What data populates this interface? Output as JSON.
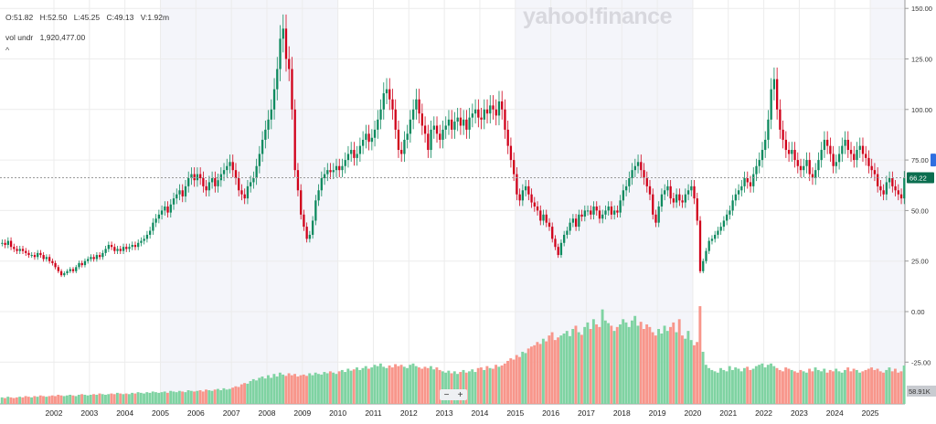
{
  "legend": {
    "open": "O:51.82",
    "high": "H:52.50",
    "low": "L:45.25",
    "close": "C:49.13",
    "volume": "V:1.92m",
    "vol_label": "vol undr",
    "vol_value": "1,920,477.00",
    "collapse": "^"
  },
  "logo": "yahoo!finance",
  "zoom_controls": {
    "minus": "−",
    "plus": "+"
  },
  "colors": {
    "up": "#0e8a5f",
    "down": "#d0021b",
    "vol_up": "#7fd3a2",
    "vol_down": "#f8968b",
    "price_tag": "#0b6e4f",
    "vol_tag": "#c8cbd0",
    "shade": "#f4f5fa"
  },
  "chart_data": {
    "type": "candlestick",
    "interval": "monthly",
    "start": "2000-07",
    "y_ticks": [
      "150.00",
      "125.00",
      "100.00",
      "75.00",
      "50.00",
      "25.00",
      "0.00",
      "-25.00"
    ],
    "y_tick_values": [
      150,
      125,
      100,
      75,
      50,
      25,
      0,
      -25
    ],
    "x_ticks": [
      "2002",
      "2003",
      "2004",
      "2005",
      "2006",
      "2007",
      "2008",
      "2009",
      "2010",
      "2011",
      "2012",
      "2013",
      "2014",
      "2015",
      "2016",
      "2017",
      "2018",
      "2019",
      "2020",
      "2021",
      "2022",
      "2023",
      "2024",
      "2025"
    ],
    "current_price": "66.22",
    "current_price_value": 66.22,
    "last_volume": "58.91K",
    "shaded_periods": [
      [
        2005,
        2010
      ],
      [
        2015,
        2020
      ],
      [
        2025,
        2026
      ]
    ],
    "close": [
      34,
      33,
      35,
      32,
      31,
      30,
      31,
      30,
      29,
      28,
      28,
      27,
      29,
      28,
      26,
      27,
      25,
      24,
      22,
      20,
      18,
      19,
      20,
      21,
      20,
      22,
      24,
      23,
      25,
      26,
      27,
      26,
      28,
      27,
      29,
      31,
      33,
      32,
      30,
      31,
      30,
      32,
      31,
      32,
      33,
      32,
      34,
      35,
      36,
      38,
      40,
      44,
      46,
      48,
      50,
      52,
      49,
      53,
      56,
      58,
      60,
      57,
      62,
      66,
      68,
      65,
      68,
      66,
      62,
      60,
      64,
      66,
      62,
      65,
      68,
      70,
      72,
      74,
      70,
      66,
      60,
      58,
      56,
      62,
      64,
      66,
      72,
      78,
      85,
      90,
      95,
      100,
      110,
      120,
      135,
      140,
      125,
      120,
      100,
      70,
      60,
      48,
      42,
      36,
      38,
      45,
      55,
      60,
      66,
      68,
      70,
      69,
      70,
      72,
      70,
      72,
      75,
      78,
      80,
      76,
      78,
      82,
      85,
      88,
      84,
      86,
      90,
      95,
      100,
      108,
      110,
      105,
      100,
      90,
      80,
      78,
      85,
      88,
      95,
      100,
      105,
      98,
      92,
      88,
      80,
      90,
      92,
      88,
      85,
      90,
      92,
      95,
      90,
      94,
      96,
      92,
      95,
      90,
      96,
      98,
      100,
      96,
      95,
      100,
      98,
      102,
      100,
      97,
      104,
      100,
      90,
      82,
      75,
      68,
      58,
      55,
      60,
      62,
      58,
      54,
      52,
      50,
      45,
      48,
      44,
      42,
      36,
      32,
      28,
      34,
      38,
      40,
      44,
      46,
      42,
      48,
      47,
      50,
      50,
      48,
      52,
      50,
      46,
      48,
      50,
      52,
      48,
      50,
      49,
      55,
      60,
      62,
      66,
      70,
      72,
      74,
      70,
      66,
      62,
      58,
      48,
      44,
      52,
      58,
      60,
      62,
      56,
      54,
      58,
      55,
      54,
      58,
      60,
      62,
      56,
      45,
      20,
      25,
      30,
      35,
      36,
      38,
      40,
      42,
      45,
      48,
      50,
      55,
      58,
      60,
      62,
      66,
      64,
      62,
      68,
      72,
      75,
      80,
      85,
      95,
      110,
      115,
      100,
      90,
      85,
      80,
      78,
      80,
      75,
      72,
      70,
      72,
      75,
      68,
      66,
      70,
      75,
      80,
      85,
      82,
      78,
      72,
      74,
      78,
      82,
      85,
      80,
      78,
      75,
      80,
      82,
      78,
      76,
      72,
      70,
      68,
      62,
      60,
      58,
      64,
      66,
      62,
      60,
      58,
      56,
      66.22
    ],
    "volume_k": [
      10,
      9,
      11,
      10,
      9,
      10,
      11,
      10,
      12,
      11,
      10,
      12,
      11,
      13,
      12,
      11,
      12,
      13,
      12,
      14,
      13,
      12,
      13,
      14,
      13,
      12,
      14,
      15,
      14,
      13,
      14,
      15,
      14,
      16,
      15,
      14,
      15,
      16,
      15,
      17,
      16,
      15,
      16,
      15,
      17,
      16,
      18,
      17,
      16,
      18,
      17,
      19,
      18,
      17,
      18,
      19,
      17,
      20,
      19,
      18,
      20,
      19,
      18,
      21,
      20,
      19,
      20,
      21,
      19,
      22,
      21,
      20,
      22,
      23,
      21,
      24,
      22,
      23,
      25,
      27,
      26,
      30,
      32,
      31,
      35,
      38,
      36,
      40,
      42,
      39,
      44,
      40,
      46,
      42,
      48,
      45,
      43,
      47,
      44,
      46,
      42,
      44,
      45,
      43,
      47,
      44,
      48,
      46,
      45,
      49,
      47,
      50,
      48,
      46,
      50,
      52,
      49,
      54,
      51,
      53,
      56,
      52,
      55,
      58,
      54,
      56,
      60,
      58,
      62,
      57,
      55,
      59,
      56,
      61,
      58,
      60,
      57,
      55,
      60,
      62,
      58,
      56,
      54,
      57,
      55,
      58,
      53,
      56,
      52,
      50,
      48,
      51,
      47,
      50,
      46,
      49,
      52,
      48,
      50,
      53,
      49,
      55,
      56,
      52,
      58,
      55,
      54,
      60,
      57,
      59,
      62,
      66,
      70,
      68,
      75,
      72,
      80,
      78,
      85,
      88,
      90,
      95,
      92,
      100,
      96,
      105,
      110,
      98,
      102,
      105,
      108,
      112,
      104,
      115,
      120,
      110,
      106,
      118,
      125,
      115,
      130,
      122,
      118,
      145,
      128,
      124,
      120,
      112,
      118,
      122,
      130,
      125,
      118,
      128,
      135,
      120,
      126,
      115,
      122,
      118,
      110,
      105,
      115,
      108,
      120,
      112,
      118,
      125,
      110,
      130,
      105,
      100,
      112,
      98,
      90,
      95,
      150,
      80,
      60,
      55,
      52,
      50,
      48,
      55,
      52,
      50,
      58,
      52,
      56,
      54,
      50,
      55,
      57,
      52,
      54,
      58,
      60,
      62,
      56,
      60,
      62,
      58,
      55,
      52,
      50,
      56,
      54,
      52,
      50,
      48,
      52,
      50,
      48,
      54,
      50,
      56,
      52,
      50,
      54,
      48,
      52,
      50,
      54,
      50,
      48,
      52,
      56,
      50,
      54,
      52,
      48,
      50,
      52,
      54,
      56,
      52,
      54,
      50,
      48,
      52,
      56,
      50,
      54,
      48,
      50,
      58.91
    ]
  }
}
